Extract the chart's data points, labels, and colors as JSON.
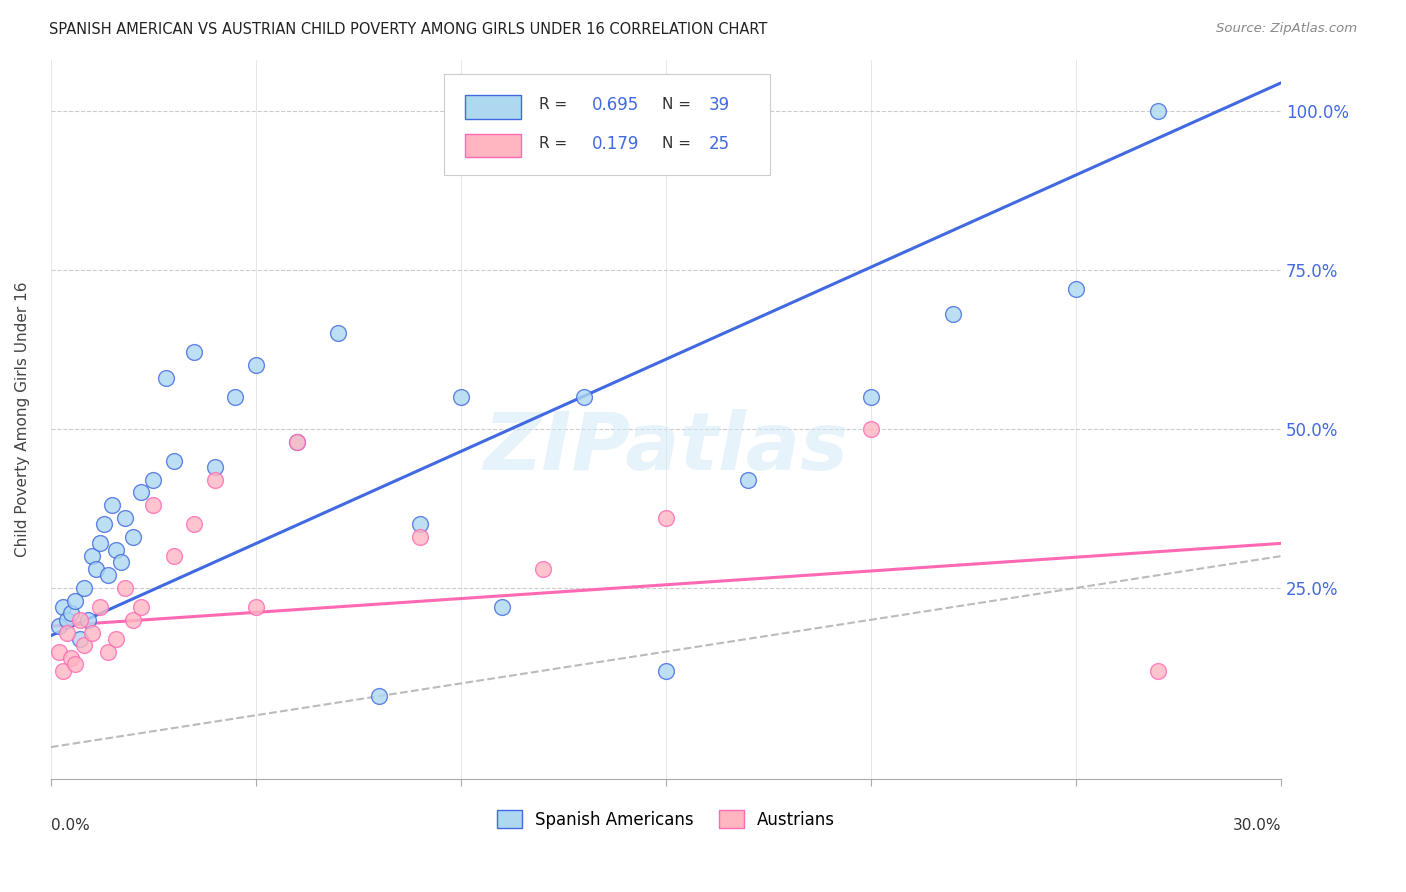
{
  "title": "SPANISH AMERICAN VS AUSTRIAN CHILD POVERTY AMONG GIRLS UNDER 16 CORRELATION CHART",
  "source": "Source: ZipAtlas.com",
  "ylabel": "Child Poverty Among Girls Under 16",
  "ytick_values": [
    0.25,
    0.5,
    0.75,
    1.0
  ],
  "ytick_labels": [
    "25.0%",
    "50.0%",
    "75.0%",
    "100.0%"
  ],
  "xlim": [
    0.0,
    0.3
  ],
  "ylim": [
    -0.05,
    1.08
  ],
  "watermark": "ZIPatlas",
  "color_spanish": "#ADD8F0",
  "color_austrian": "#FFB6C1",
  "color_spanish_line": "#4169E1",
  "color_austrian_line": "#FF69B4",
  "color_diag": "#BBBBBB",
  "background_color": "#ffffff",
  "spanish_x": [
    0.002,
    0.003,
    0.004,
    0.005,
    0.006,
    0.007,
    0.008,
    0.009,
    0.01,
    0.011,
    0.012,
    0.013,
    0.014,
    0.015,
    0.016,
    0.017,
    0.018,
    0.02,
    0.022,
    0.025,
    0.028,
    0.03,
    0.035,
    0.04,
    0.045,
    0.05,
    0.06,
    0.07,
    0.08,
    0.09,
    0.1,
    0.11,
    0.13,
    0.15,
    0.17,
    0.2,
    0.22,
    0.25,
    0.27
  ],
  "spanish_y": [
    0.19,
    0.22,
    0.2,
    0.21,
    0.23,
    0.17,
    0.25,
    0.2,
    0.3,
    0.28,
    0.32,
    0.35,
    0.27,
    0.38,
    0.31,
    0.29,
    0.36,
    0.33,
    0.4,
    0.42,
    0.58,
    0.45,
    0.62,
    0.44,
    0.55,
    0.6,
    0.48,
    0.65,
    0.08,
    0.35,
    0.55,
    0.22,
    0.55,
    0.12,
    0.42,
    0.55,
    0.68,
    0.72,
    1.0
  ],
  "austrian_x": [
    0.002,
    0.003,
    0.004,
    0.005,
    0.006,
    0.007,
    0.008,
    0.01,
    0.012,
    0.014,
    0.016,
    0.018,
    0.02,
    0.022,
    0.025,
    0.03,
    0.035,
    0.04,
    0.05,
    0.06,
    0.09,
    0.12,
    0.15,
    0.2,
    0.27
  ],
  "austrian_y": [
    0.15,
    0.12,
    0.18,
    0.14,
    0.13,
    0.2,
    0.16,
    0.18,
    0.22,
    0.15,
    0.17,
    0.25,
    0.2,
    0.22,
    0.38,
    0.3,
    0.35,
    0.42,
    0.22,
    0.48,
    0.33,
    0.28,
    0.36,
    0.5,
    0.12
  ]
}
